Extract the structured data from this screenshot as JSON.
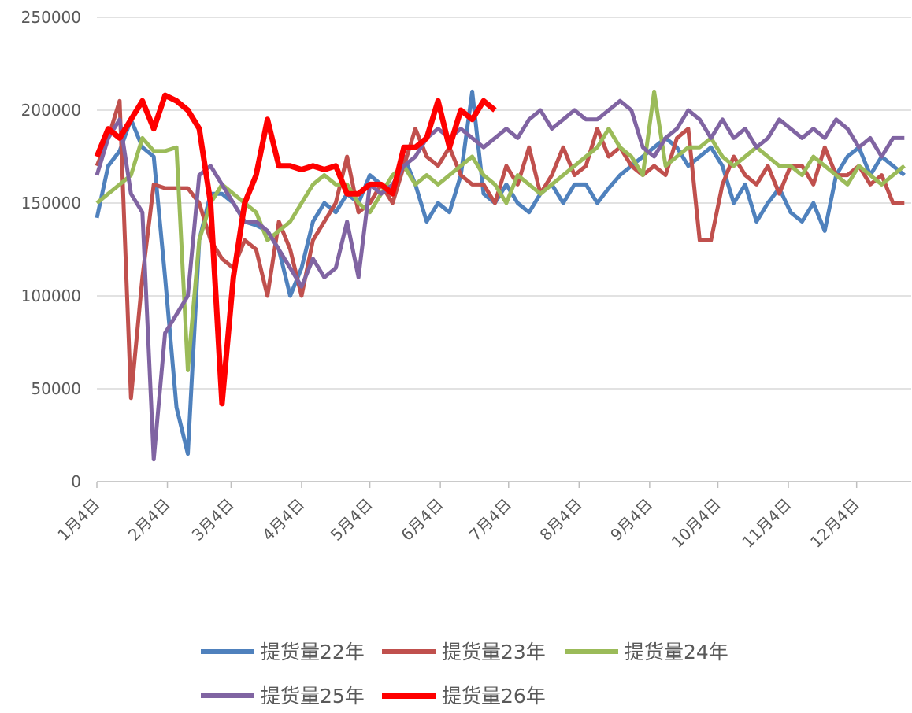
{
  "chart_data": {
    "type": "line",
    "x": [
      0,
      5,
      10,
      15,
      20,
      25,
      30,
      35,
      40,
      45,
      50,
      55,
      60,
      65,
      70,
      75,
      80,
      85,
      90,
      95,
      100,
      105,
      110,
      115,
      120,
      125,
      130,
      135,
      140,
      145,
      150,
      155,
      160,
      165,
      170,
      175,
      180,
      185,
      190,
      195,
      200,
      205,
      210,
      215,
      220,
      225,
      230,
      235,
      240,
      245,
      250,
      255,
      260,
      265,
      270,
      275,
      280,
      285,
      290,
      295,
      300,
      305,
      310,
      315,
      320,
      325,
      330,
      335,
      340,
      345,
      350,
      355
    ],
    "xlim": [
      0,
      358
    ],
    "xticks": [
      {
        "value": 0,
        "label": "1月4日"
      },
      {
        "value": 31,
        "label": "2月4日"
      },
      {
        "value": 59,
        "label": "3月4日"
      },
      {
        "value": 90,
        "label": "4月4日"
      },
      {
        "value": 120,
        "label": "5月4日"
      },
      {
        "value": 151,
        "label": "6月4日"
      },
      {
        "value": 181,
        "label": "7月4日"
      },
      {
        "value": 212,
        "label": "8月4日"
      },
      {
        "value": 243,
        "label": "9月4日"
      },
      {
        "value": 273,
        "label": "10月4日"
      },
      {
        "value": 304,
        "label": "11月4日"
      },
      {
        "value": 334,
        "label": "12月4日"
      }
    ],
    "ylim": [
      0,
      250000
    ],
    "yticks": [
      0,
      50000,
      100000,
      150000,
      200000,
      250000
    ],
    "grid": true,
    "legend": "bottom",
    "series": [
      {
        "name": "提货量22年",
        "color": "#4f81bd",
        "values": [
          142000,
          170000,
          178000,
          195000,
          180000,
          175000,
          110000,
          40000,
          15000,
          130000,
          155000,
          155000,
          150000,
          140000,
          138000,
          135000,
          125000,
          100000,
          115000,
          140000,
          150000,
          145000,
          155000,
          150000,
          165000,
          160000,
          155000,
          175000,
          160000,
          140000,
          150000,
          145000,
          165000,
          210000,
          155000,
          150000,
          160000,
          150000,
          145000,
          155000,
          160000,
          150000,
          160000,
          160000,
          150000,
          158000,
          165000,
          170000,
          175000,
          180000,
          185000,
          180000,
          170000,
          175000,
          180000,
          170000,
          150000,
          160000,
          140000,
          150000,
          158000,
          145000,
          140000,
          150000,
          135000,
          165000,
          175000,
          180000,
          165000,
          175000,
          170000,
          165000
        ]
      },
      {
        "name": "提货量23年",
        "color": "#c0504d",
        "values": [
          170000,
          185000,
          205000,
          45000,
          110000,
          160000,
          158000,
          158000,
          158000,
          150000,
          130000,
          120000,
          115000,
          130000,
          125000,
          100000,
          140000,
          125000,
          100000,
          130000,
          140000,
          150000,
          175000,
          145000,
          150000,
          160000,
          150000,
          170000,
          190000,
          175000,
          170000,
          180000,
          165000,
          160000,
          160000,
          150000,
          170000,
          160000,
          180000,
          155000,
          165000,
          180000,
          165000,
          170000,
          190000,
          175000,
          180000,
          170000,
          165000,
          170000,
          165000,
          185000,
          190000,
          130000,
          130000,
          160000,
          175000,
          165000,
          160000,
          170000,
          155000,
          170000,
          170000,
          160000,
          180000,
          165000,
          165000,
          170000,
          160000,
          165000,
          150000,
          150000
        ]
      },
      {
        "name": "提货量24年",
        "color": "#9bbb59",
        "values": [
          150000,
          155000,
          160000,
          165000,
          185000,
          178000,
          178000,
          180000,
          60000,
          130000,
          150000,
          160000,
          155000,
          150000,
          145000,
          130000,
          135000,
          140000,
          150000,
          160000,
          165000,
          160000,
          160000,
          150000,
          145000,
          155000,
          165000,
          170000,
          160000,
          165000,
          160000,
          165000,
          170000,
          175000,
          165000,
          160000,
          150000,
          165000,
          160000,
          155000,
          160000,
          165000,
          170000,
          175000,
          180000,
          190000,
          180000,
          175000,
          165000,
          210000,
          170000,
          175000,
          180000,
          180000,
          185000,
          175000,
          170000,
          175000,
          180000,
          175000,
          170000,
          170000,
          165000,
          175000,
          170000,
          165000,
          160000,
          170000,
          165000,
          160000,
          165000,
          170000
        ]
      },
      {
        "name": "提货量25年",
        "color": "#8064a2",
        "values": [
          165000,
          185000,
          195000,
          155000,
          145000,
          12000,
          80000,
          90000,
          100000,
          165000,
          170000,
          160000,
          150000,
          140000,
          140000,
          135000,
          125000,
          115000,
          105000,
          120000,
          110000,
          115000,
          140000,
          110000,
          160000,
          155000,
          160000,
          170000,
          175000,
          185000,
          190000,
          185000,
          190000,
          185000,
          180000,
          185000,
          190000,
          185000,
          195000,
          200000,
          190000,
          195000,
          200000,
          195000,
          195000,
          200000,
          205000,
          200000,
          180000,
          175000,
          185000,
          190000,
          200000,
          195000,
          185000,
          195000,
          185000,
          190000,
          180000,
          185000,
          195000,
          190000,
          185000,
          190000,
          185000,
          195000,
          190000,
          180000,
          185000,
          175000,
          185000,
          185000
        ]
      },
      {
        "name": "提货量26年",
        "color": "#ff0000",
        "values": [
          175000,
          190000,
          185000,
          195000,
          205000,
          190000,
          208000,
          205000,
          200000,
          190000,
          150000,
          42000,
          110000,
          150000,
          165000,
          195000,
          170000,
          170000,
          168000,
          170000,
          168000,
          170000,
          155000,
          155000,
          160000,
          160000,
          155000,
          180000,
          180000,
          185000,
          205000,
          180000,
          200000,
          195000,
          205000,
          200000,
          null,
          null,
          null,
          null,
          null,
          null,
          null,
          null,
          null,
          null,
          null,
          null,
          null,
          null,
          null,
          null,
          null,
          null,
          null,
          null,
          null,
          null,
          null,
          null,
          null,
          null,
          null,
          null,
          null,
          null,
          null,
          null,
          null,
          null,
          null,
          null
        ]
      }
    ]
  }
}
